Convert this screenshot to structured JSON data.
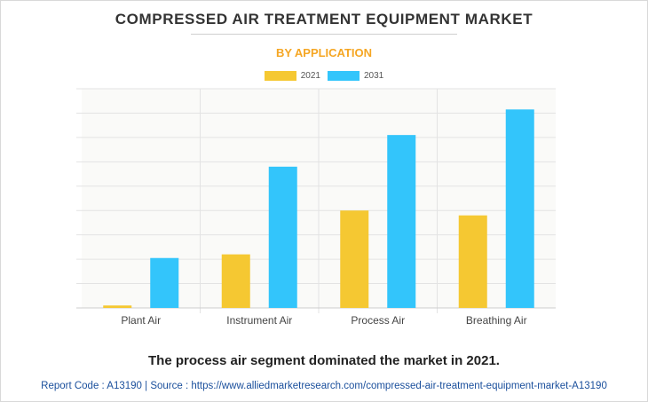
{
  "title": "COMPRESSED AIR TREATMENT EQUIPMENT MARKET",
  "subtitle": "BY APPLICATION",
  "legend": [
    {
      "label": "2021",
      "color": "#f5c832"
    },
    {
      "label": "2031",
      "color": "#33c5fb"
    }
  ],
  "chart_data": {
    "type": "bar",
    "title": "COMPRESSED AIR TREATMENT EQUIPMENT MARKET",
    "subtitle": "BY APPLICATION",
    "categories": [
      "Plant Air",
      "Instrument Air",
      "Process Air",
      "Breathing Air"
    ],
    "series": [
      {
        "name": "2021",
        "color": "#f5c832",
        "values": [
          1,
          22,
          40,
          38
        ]
      },
      {
        "name": "2031",
        "color": "#33c5fb",
        "values": [
          20.5,
          58,
          71,
          81.5
        ]
      }
    ],
    "xlabel": "",
    "ylabel": "",
    "ylim": [
      0,
      90
    ],
    "y_gridlines": 9,
    "grid": true,
    "legend_position": "top-center"
  },
  "headline": "The process air segment dominated the market in 2021.",
  "footer": "Report Code : A13190  |  Source : https://www.alliedmarketresearch.com/compressed-air-treatment-equipment-market-A13190"
}
